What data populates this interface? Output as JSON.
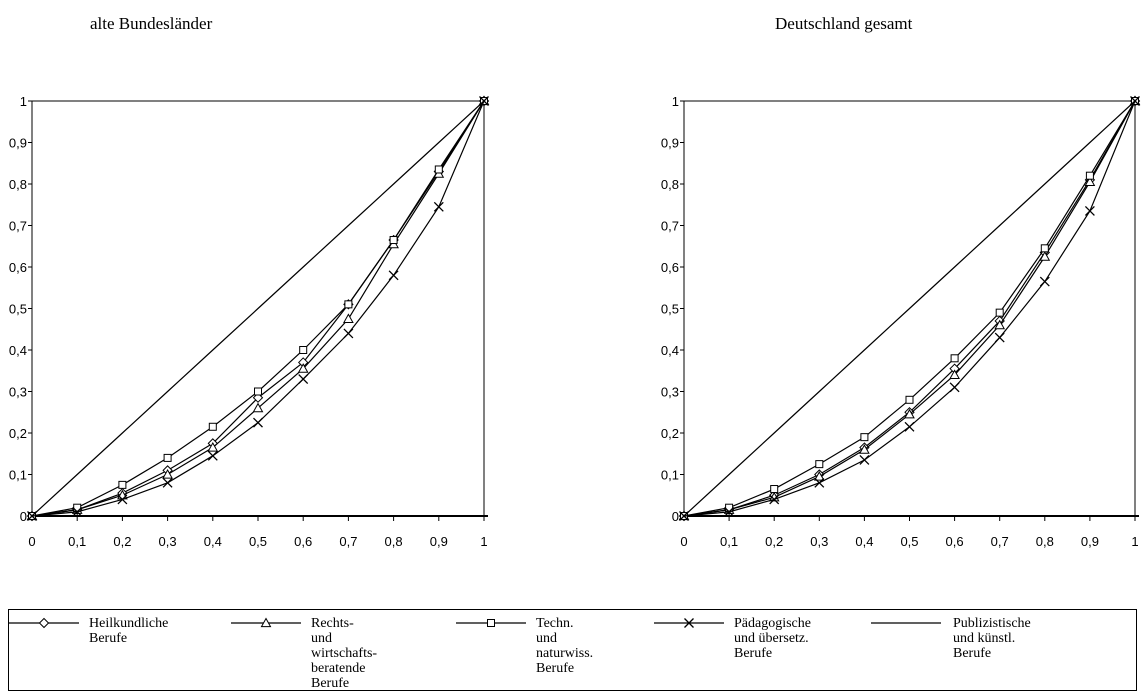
{
  "chart_data": [
    {
      "type": "line",
      "title": "alte Bundesländer",
      "xlim": [
        0,
        1
      ],
      "ylim": [
        0,
        1
      ],
      "x": [
        0,
        0.1,
        0.2,
        0.3,
        0.4,
        0.5,
        0.6,
        0.7,
        0.8,
        0.9,
        1
      ],
      "x_tick_labels": [
        "0",
        "0,1",
        "0,2",
        "0,3",
        "0,4",
        "0,5",
        "0,6",
        "0,7",
        "0,8",
        "0,9",
        "1"
      ],
      "y_tick_labels": [
        "0",
        "0,1",
        "0,2",
        "0,3",
        "0,4",
        "0,5",
        "0,6",
        "0,7",
        "0,8",
        "0,9",
        "1"
      ],
      "series": [
        {
          "name": "Heilkundliche Berufe",
          "marker": "diamond",
          "values": [
            0,
            0.015,
            0.055,
            0.11,
            0.175,
            0.285,
            0.37,
            0.51,
            0.665,
            0.83,
            1
          ]
        },
        {
          "name": "Rechts- und wirtschafts- beratende Berufe",
          "marker": "triangle",
          "values": [
            0,
            0.015,
            0.05,
            0.1,
            0.165,
            0.26,
            0.355,
            0.475,
            0.655,
            0.825,
            1
          ]
        },
        {
          "name": "Techn. und naturwiss. Berufe",
          "marker": "square",
          "values": [
            0,
            0.02,
            0.075,
            0.14,
            0.215,
            0.3,
            0.4,
            0.51,
            0.665,
            0.835,
            1
          ]
        },
        {
          "name": "Pädagogische und übersetz. Berufe",
          "marker": "x",
          "values": [
            0,
            0.01,
            0.04,
            0.08,
            0.145,
            0.225,
            0.33,
            0.44,
            0.58,
            0.745,
            1
          ]
        },
        {
          "name": "Publizistische und künstl. Berufe",
          "marker": "none",
          "values": [
            0,
            0.1,
            0.2,
            0.3,
            0.4,
            0.5,
            0.6,
            0.7,
            0.8,
            0.9,
            1
          ]
        }
      ]
    },
    {
      "type": "line",
      "title": "Deutschland gesamt",
      "xlim": [
        0,
        1
      ],
      "ylim": [
        0,
        1
      ],
      "x": [
        0,
        0.1,
        0.2,
        0.3,
        0.4,
        0.5,
        0.6,
        0.7,
        0.8,
        0.9,
        1
      ],
      "x_tick_labels": [
        "0",
        "0,1",
        "0,2",
        "0,3",
        "0,4",
        "0,5",
        "0,6",
        "0,7",
        "0,8",
        "0,9",
        "1"
      ],
      "y_tick_labels": [
        "0",
        "0,1",
        "0,2",
        "0,3",
        "0,4",
        "0,5",
        "0,6",
        "0,7",
        "0,8",
        "0,9",
        "1"
      ],
      "series": [
        {
          "name": "Heilkundliche Berufe",
          "marker": "diamond",
          "values": [
            0,
            0.015,
            0.05,
            0.1,
            0.165,
            0.25,
            0.355,
            0.47,
            0.635,
            0.81,
            1
          ]
        },
        {
          "name": "Rechts- und wirtschafts- beratende Berufe",
          "marker": "triangle",
          "values": [
            0,
            0.015,
            0.045,
            0.095,
            0.16,
            0.245,
            0.34,
            0.46,
            0.625,
            0.805,
            1
          ]
        },
        {
          "name": "Techn. und naturwiss. Berufe",
          "marker": "square",
          "values": [
            0,
            0.02,
            0.065,
            0.125,
            0.19,
            0.28,
            0.38,
            0.49,
            0.645,
            0.82,
            1
          ]
        },
        {
          "name": "Pädagogische und übersetz. Berufe",
          "marker": "x",
          "values": [
            0,
            0.01,
            0.04,
            0.08,
            0.135,
            0.215,
            0.31,
            0.43,
            0.565,
            0.735,
            1
          ]
        },
        {
          "name": "Publizistische und künstl. Berufe",
          "marker": "none",
          "values": [
            0,
            0.1,
            0.2,
            0.3,
            0.4,
            0.5,
            0.6,
            0.7,
            0.8,
            0.9,
            1
          ]
        }
      ]
    }
  ],
  "legend": [
    {
      "marker": "diamond",
      "label": "Heilkundliche\nBerufe"
    },
    {
      "marker": "triangle",
      "label": "Rechts- und\nwirtschafts-\nberatende\nBerufe"
    },
    {
      "marker": "square",
      "label": "Techn. und\nnaturwiss.\nBerufe"
    },
    {
      "marker": "x",
      "label": "Pädagogische\nund übersetz.\nBerufe"
    },
    {
      "marker": "none",
      "label": "Publizistische\nund künstl.\nBerufe"
    }
  ]
}
